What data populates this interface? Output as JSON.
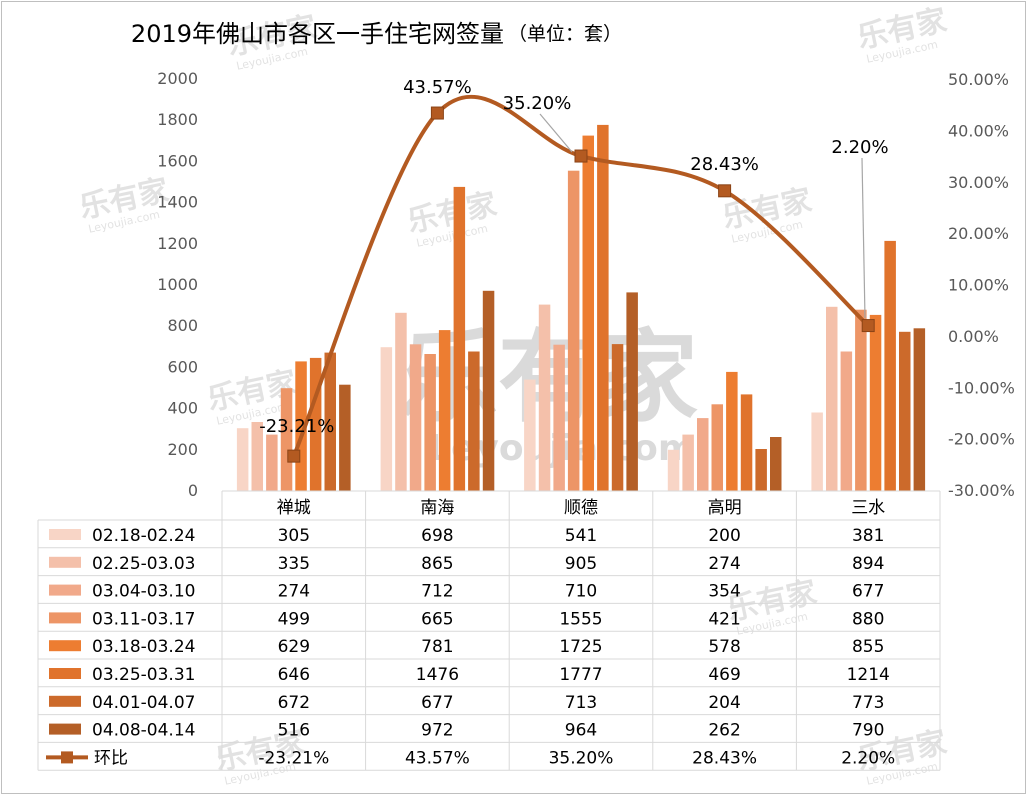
{
  "chart_data": {
    "type": "bar",
    "title": "2019年佛山市各区一手住宅网签量",
    "unit_label": "（单位：套）",
    "categories": [
      "禅城",
      "南海",
      "顺德",
      "高明",
      "三水"
    ],
    "series": [
      {
        "name": "02.18-02.24",
        "color": "#f8d5c6",
        "values": [
          305,
          698,
          541,
          200,
          381
        ]
      },
      {
        "name": "02.25-03.03",
        "color": "#f4c0aa",
        "values": [
          335,
          865,
          905,
          274,
          894
        ]
      },
      {
        "name": "03.04-03.10",
        "color": "#f1a98a",
        "values": [
          274,
          712,
          710,
          354,
          677
        ]
      },
      {
        "name": "03.11-03.17",
        "color": "#ed9566",
        "values": [
          499,
          665,
          1555,
          421,
          880
        ]
      },
      {
        "name": "03.18-03.24",
        "color": "#ed7d31",
        "values": [
          629,
          781,
          1725,
          578,
          855
        ]
      },
      {
        "name": "03.25-03.31",
        "color": "#e0732c",
        "values": [
          646,
          1476,
          1777,
          469,
          1214
        ]
      },
      {
        "name": "04.01-04.07",
        "color": "#cc6a2b",
        "values": [
          672,
          677,
          713,
          204,
          773
        ]
      },
      {
        "name": "04.08-04.14",
        "color": "#b45f27",
        "values": [
          516,
          972,
          964,
          262,
          790
        ]
      }
    ],
    "line": {
      "name": "环比",
      "color": "#b35a21",
      "values": [
        -23.21,
        43.57,
        35.2,
        28.43,
        2.2
      ],
      "labels": [
        "-23.21%",
        "43.57%",
        "35.20%",
        "28.43%",
        "2.20%"
      ]
    },
    "y_left": {
      "min": 0,
      "max": 2000,
      "ticks": [
        "0",
        "200",
        "400",
        "600",
        "800",
        "1000",
        "1200",
        "1400",
        "1600",
        "1800",
        "2000"
      ]
    },
    "y_right": {
      "min": -30,
      "max": 50,
      "ticks": [
        "-30.00%",
        "-20.00%",
        "-10.00%",
        "0.00%",
        "10.00%",
        "20.00%",
        "30.00%",
        "40.00%",
        "50.00%"
      ]
    },
    "grid": false,
    "legend": "data-table-below"
  },
  "watermark": {
    "brand": "乐有家",
    "site": "Leyoujia.com"
  }
}
